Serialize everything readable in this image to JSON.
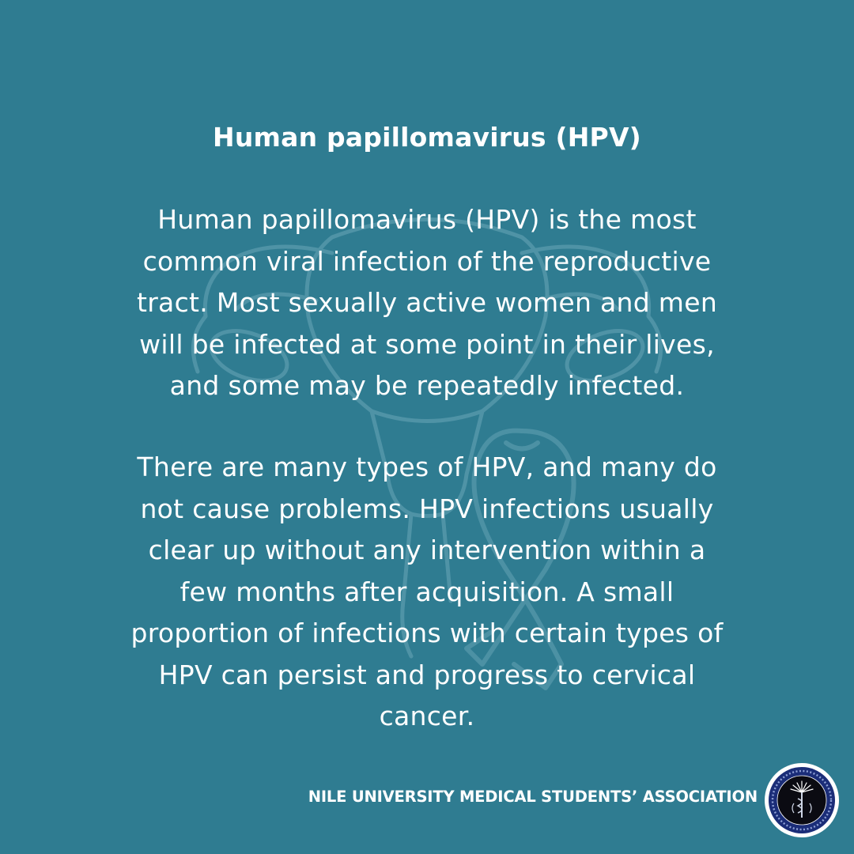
{
  "title": "Human papillomavirus (HPV)",
  "paragraphs": [
    "Human papillomavirus (HPV) is the most\ncommon viral infection of the reproductive\ntract. Most sexually active women and men\nwill be infected at some point in their lives,\nand some may be repeatedly infected.",
    "There are many types of HPV, and many do\nnot cause problems. HPV infections usually\nclear up without any intervention within a\nfew months after acquisition. A small\nproportion of infections with certain types of\nHPV can persist and progress to cervical\ncancer."
  ],
  "footer": "NILE UNIVERSITY MEDICAL STUDENTS’ ASSOCIATION",
  "seal": {
    "ring_text": "NILE UNIVERSITY MEDICAL STUDENTS ASSOCIATION",
    "initials": "N U M S A"
  },
  "colors": {
    "background": "#2f7c91",
    "text": "#ffffff",
    "watermark": "#6aa7b8",
    "seal_ring": "#1b2d78",
    "seal_inner": "#0b0b12"
  },
  "icons": [
    "uterus-watermark-icon",
    "awareness-ribbon-icon",
    "association-seal-icon"
  ]
}
